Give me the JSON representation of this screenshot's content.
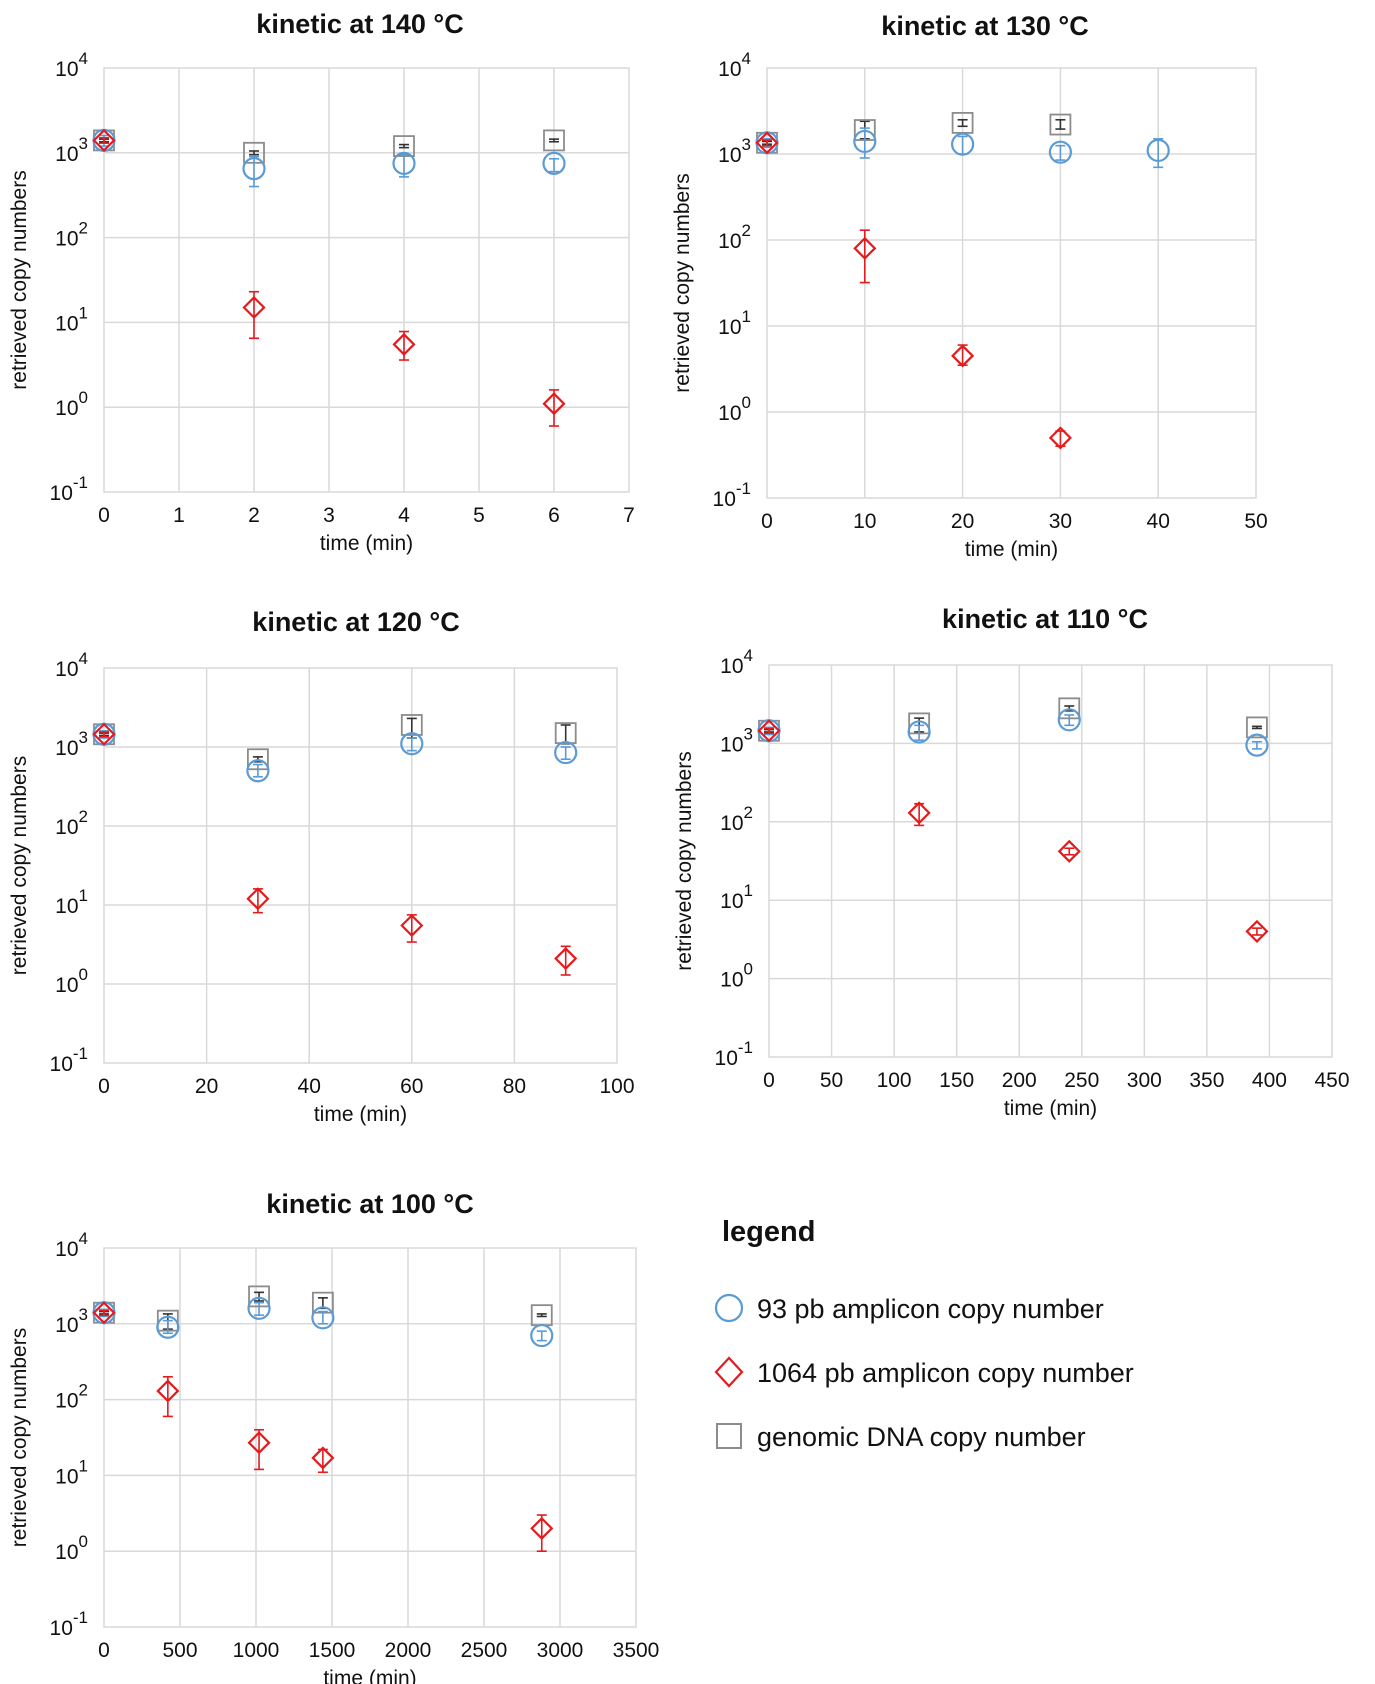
{
  "colors": {
    "amplicon_93": "#5b9bd5",
    "amplicon_1064": "#e41a1c",
    "genomic": "#8c8c8c",
    "grid": "#d9d9d9"
  },
  "legend": {
    "title": "legend",
    "items": [
      {
        "label": "93 pb amplicon copy number",
        "marker": "circle",
        "color": "#5b9bd5"
      },
      {
        "label": "1064 pb amplicon copy number",
        "marker": "diamond",
        "color": "#e41a1c"
      },
      {
        "label": "genomic DNA copy number",
        "marker": "square",
        "color": "#8c8c8c"
      }
    ]
  },
  "chart_data": [
    {
      "type": "scatter",
      "title": "kinetic at 140 °C",
      "xlabel": "time (min)",
      "ylabel": "retrieved copy numbers",
      "y_scale": "log",
      "ylim": [
        0.1,
        10000
      ],
      "xlim": [
        0,
        7
      ],
      "xticks": [
        0,
        1,
        2,
        3,
        4,
        5,
        6,
        7
      ],
      "grid": true,
      "x_gridlines": "every 1",
      "series": [
        {
          "name": "93 pb amplicon copy number",
          "marker": "circle",
          "x": [
            0,
            2,
            4,
            6
          ],
          "y": [
            1400,
            650,
            750,
            750
          ],
          "err_low": [
            1200,
            400,
            520,
            600
          ],
          "err_high": [
            1600,
            900,
            950,
            850
          ]
        },
        {
          "name": "1064 pb amplicon copy number",
          "marker": "diamond",
          "x": [
            0,
            2,
            4,
            6
          ],
          "y": [
            1400,
            15,
            5.5,
            1.1
          ],
          "err_low": [
            1300,
            6.5,
            3.6,
            0.6
          ],
          "err_high": [
            1500,
            23,
            7.8,
            1.6
          ]
        },
        {
          "name": "genomic DNA copy number",
          "marker": "square",
          "x": [
            0,
            2,
            4,
            6
          ],
          "y": [
            1400,
            1000,
            1200,
            1400
          ],
          "err_low": [
            1350,
            950,
            1150,
            1350
          ],
          "err_high": [
            1450,
            1050,
            1250,
            1450
          ]
        }
      ]
    },
    {
      "type": "scatter",
      "title": "kinetic at 130 °C",
      "xlabel": "time (min)",
      "ylabel": "retrieved copy numbers",
      "y_scale": "log",
      "ylim": [
        0.1,
        10000
      ],
      "xlim": [
        0,
        50
      ],
      "xticks": [
        0,
        10,
        20,
        30,
        40,
        50
      ],
      "grid": true,
      "x_gridlines": "every 10",
      "series": [
        {
          "name": "93 pb amplicon copy number",
          "marker": "circle",
          "x": [
            0,
            10,
            20,
            30,
            40
          ],
          "y": [
            1350,
            1400,
            1300,
            1050,
            1100
          ],
          "err_low": [
            1200,
            900,
            1000,
            850,
            700
          ],
          "err_high": [
            1500,
            2000,
            1600,
            1250,
            1500
          ]
        },
        {
          "name": "1064 pb amplicon copy number",
          "marker": "diamond",
          "x": [
            0,
            10,
            20,
            30
          ],
          "y": [
            1350,
            80,
            4.5,
            0.5
          ],
          "err_low": [
            1250,
            32,
            3.5,
            0.4
          ],
          "err_high": [
            1450,
            130,
            6,
            0.6
          ]
        },
        {
          "name": "genomic DNA copy number",
          "marker": "square",
          "x": [
            0,
            10,
            20,
            30
          ],
          "y": [
            1350,
            1900,
            2300,
            2200
          ],
          "err_low": [
            1300,
            1500,
            2100,
            1950
          ],
          "err_high": [
            1400,
            2400,
            2500,
            2500
          ]
        }
      ]
    },
    {
      "type": "scatter",
      "title": "kinetic at 120 °C",
      "xlabel": "time (min)",
      "ylabel": "retrieved copy numbers",
      "y_scale": "log",
      "ylim": [
        0.1,
        10000
      ],
      "xlim": [
        0,
        100
      ],
      "xticks": [
        0,
        20,
        40,
        60,
        80,
        100
      ],
      "grid": true,
      "x_gridlines": "every 20",
      "series": [
        {
          "name": "93 pb amplicon copy number",
          "marker": "circle",
          "x": [
            0,
            30,
            60,
            90
          ],
          "y": [
            1450,
            500,
            1100,
            850
          ],
          "err_low": [
            1300,
            420,
            900,
            700
          ],
          "err_high": [
            1600,
            600,
            1300,
            1000
          ]
        },
        {
          "name": "1064 pb amplicon copy number",
          "marker": "diamond",
          "x": [
            0,
            30,
            60,
            90
          ],
          "y": [
            1450,
            12,
            5.5,
            2.1
          ],
          "err_low": [
            1350,
            8,
            3.4,
            1.3
          ],
          "err_high": [
            1550,
            16,
            7.5,
            3
          ]
        },
        {
          "name": "genomic DNA copy number",
          "marker": "square",
          "x": [
            0,
            30,
            60,
            90
          ],
          "y": [
            1450,
            700,
            1900,
            1500
          ],
          "err_low": [
            1400,
            650,
            1300,
            1100
          ],
          "err_high": [
            1500,
            750,
            2300,
            1900
          ]
        }
      ]
    },
    {
      "type": "scatter",
      "title": "kinetic at 110 °C",
      "xlabel": "time (min)",
      "ylabel": "retrieved copy numbers",
      "y_scale": "log",
      "ylim": [
        0.1,
        10000
      ],
      "xlim": [
        0,
        450
      ],
      "xticks": [
        0,
        50,
        100,
        150,
        200,
        250,
        300,
        350,
        400,
        450
      ],
      "grid": true,
      "x_gridlines": "every 50",
      "series": [
        {
          "name": "93 pb amplicon copy number",
          "marker": "circle",
          "x": [
            0,
            120,
            240,
            390
          ],
          "y": [
            1450,
            1400,
            2000,
            950
          ],
          "err_low": [
            1300,
            1100,
            1700,
            850
          ],
          "err_high": [
            1600,
            1700,
            2300,
            1050
          ]
        },
        {
          "name": "1064 pb amplicon copy number",
          "marker": "diamond",
          "x": [
            0,
            120,
            240,
            390
          ],
          "y": [
            1450,
            130,
            42,
            4
          ],
          "err_low": [
            1350,
            90,
            38,
            3.6
          ],
          "err_high": [
            1550,
            170,
            46,
            4.4
          ]
        },
        {
          "name": "genomic DNA copy number",
          "marker": "square",
          "x": [
            0,
            120,
            240,
            390
          ],
          "y": [
            1450,
            1800,
            2800,
            1600
          ],
          "err_low": [
            1400,
            1400,
            2600,
            1550
          ],
          "err_high": [
            1500,
            2100,
            3000,
            1650
          ]
        }
      ]
    },
    {
      "type": "scatter",
      "title": "kinetic at 100 °C",
      "xlabel": "time (min)",
      "ylabel": "retrieved copy numbers",
      "y_scale": "log",
      "ylim": [
        0.1,
        10000
      ],
      "xlim": [
        0,
        3500
      ],
      "xticks": [
        0,
        500,
        1000,
        1500,
        2000,
        2500,
        3000,
        3500
      ],
      "grid": true,
      "x_gridlines": "every 500",
      "series": [
        {
          "name": "93 pb amplicon copy number",
          "marker": "circle",
          "x": [
            0,
            420,
            1020,
            1440,
            2880
          ],
          "y": [
            1400,
            900,
            1600,
            1200,
            700
          ],
          "err_low": [
            1250,
            750,
            1300,
            1000,
            600
          ],
          "err_high": [
            1550,
            1100,
            1900,
            1450,
            800
          ]
        },
        {
          "name": "1064 pb amplicon copy number",
          "marker": "diamond",
          "x": [
            0,
            420,
            1020,
            1440,
            2880
          ],
          "y": [
            1400,
            130,
            27,
            17,
            2
          ],
          "err_low": [
            1300,
            60,
            12,
            11,
            1
          ],
          "err_high": [
            1500,
            200,
            40,
            22,
            3
          ]
        },
        {
          "name": "genomic DNA copy number",
          "marker": "square",
          "x": [
            0,
            420,
            1020,
            1440,
            2880
          ],
          "y": [
            1400,
            1100,
            2300,
            1900,
            1300
          ],
          "err_low": [
            1350,
            850,
            2000,
            1600,
            1250
          ],
          "err_high": [
            1450,
            1350,
            2600,
            2200,
            1350
          ]
        }
      ]
    }
  ]
}
